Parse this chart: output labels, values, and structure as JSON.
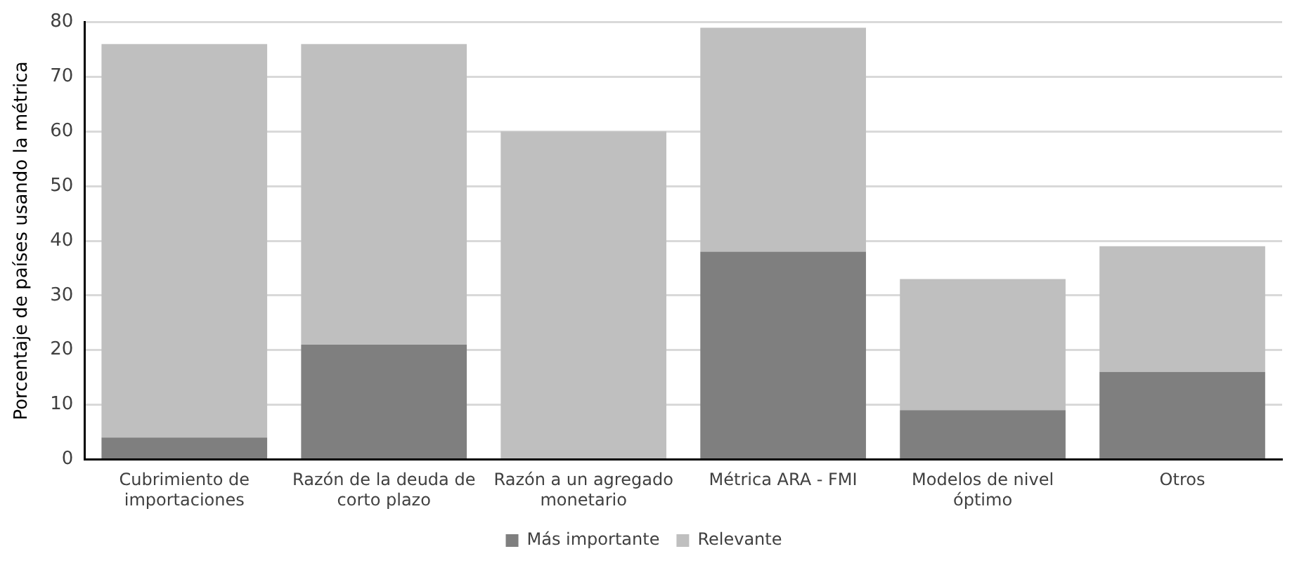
{
  "chart_data": {
    "type": "bar",
    "stacked": true,
    "ylabel": "Porcentaje de países usando la métrica",
    "categories": [
      "Cubrimiento de importaciones",
      "Razón de la deuda de corto plazo",
      "Razón a un agregado monetario",
      "Métrica ARA - FMI",
      "Modelos de nivel óptimo",
      "Otros"
    ],
    "series": [
      {
        "name": "Más importante",
        "color": "#7f7f7f",
        "values": [
          4,
          21,
          0,
          38,
          9,
          16
        ]
      },
      {
        "name": "Relevante",
        "color": "#bfbfbf",
        "values": [
          72,
          55,
          60,
          41,
          24,
          23
        ]
      }
    ],
    "ylim": [
      0,
      80
    ],
    "yticks": [
      0,
      10,
      20,
      30,
      40,
      50,
      60,
      70,
      80
    ],
    "grid": "y",
    "legend": "bottom"
  }
}
